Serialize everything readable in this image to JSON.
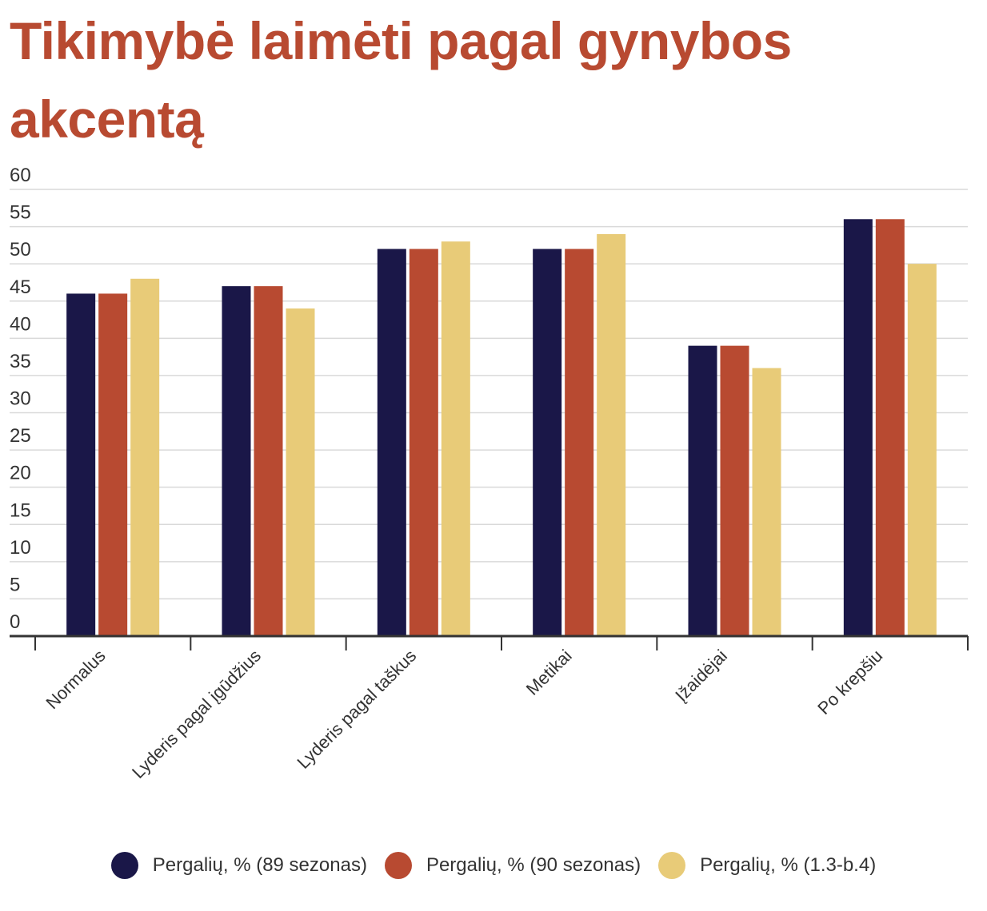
{
  "chart_data": {
    "type": "bar",
    "title": "Tikimybė laimėti pagal gynybos akcentą",
    "categories": [
      "Normalus",
      "Lyderis pagal įgūdžius",
      "Lyderis pagal taškus",
      "Metikai",
      "Įžaidėjai",
      "Po krepšiu"
    ],
    "series": [
      {
        "name": "Pergalių, % (89 sezonas)",
        "color": "#1a1748",
        "values": [
          46,
          47,
          52,
          52,
          39,
          56
        ]
      },
      {
        "name": "Pergalių, % (90 sezonas)",
        "color": "#b84a31",
        "values": [
          46,
          47,
          52,
          52,
          39,
          56
        ]
      },
      {
        "name": "Pergalių, % (1.3-b.4)",
        "color": "#e8cb78",
        "values": [
          48,
          44,
          53,
          54,
          36,
          50
        ]
      }
    ],
    "yticks": [
      "0",
      "5",
      "10",
      "15",
      "20",
      "25",
      "30",
      "35",
      "40",
      "45",
      "50",
      "55",
      "60"
    ],
    "ylim": [
      0,
      60
    ],
    "grid": true,
    "legend_position": "bottom"
  }
}
